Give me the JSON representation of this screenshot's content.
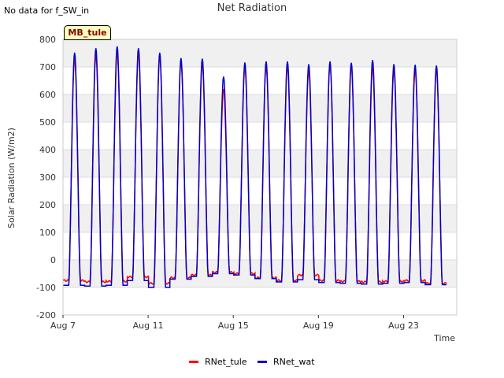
{
  "header": {
    "no_data_text": "No data for f_SW_in",
    "title": "Net Radiation"
  },
  "site_label": "MB_tule",
  "chart_data": {
    "type": "line",
    "title": "Net Radiation",
    "xlabel": "Time",
    "ylabel": "Solar Radiation (W/m2)",
    "ylim": [
      -200,
      800
    ],
    "yticks": [
      -200,
      -100,
      0,
      100,
      200,
      300,
      400,
      500,
      600,
      700,
      800
    ],
    "xlim": [
      7,
      25.5
    ],
    "xticks": [
      {
        "value": 7,
        "label": "Aug 7"
      },
      {
        "value": 11,
        "label": "Aug 11"
      },
      {
        "value": 15,
        "label": "Aug 15"
      },
      {
        "value": 19,
        "label": "Aug 19"
      },
      {
        "value": 23,
        "label": "Aug 23"
      }
    ],
    "grid": true,
    "legend_position": "bottom-center",
    "days": [
      7,
      8,
      9,
      10,
      11,
      12,
      13,
      14,
      15,
      16,
      17,
      18,
      19,
      20,
      21,
      22,
      23,
      24
    ],
    "series": [
      {
        "name": "RNet_tule",
        "color": "#ff0000",
        "peaks": [
          730,
          745,
          755,
          750,
          740,
          720,
          715,
          620,
          700,
          705,
          705,
          690,
          710,
          705,
          700,
          690,
          690,
          690
        ],
        "night": [
          -75,
          -80,
          -78,
          -62,
          -85,
          -65,
          -55,
          -45,
          -50,
          -65,
          -75,
          -55,
          -75,
          -78,
          -80,
          -78,
          -75,
          -85
        ]
      },
      {
        "name": "RNet_wat",
        "color": "#0000cc",
        "peaks": [
          752,
          768,
          775,
          768,
          752,
          732,
          730,
          665,
          716,
          720,
          720,
          710,
          720,
          715,
          725,
          710,
          708,
          705
        ],
        "night": [
          -92,
          -95,
          -92,
          -75,
          -100,
          -70,
          -60,
          -50,
          -55,
          -68,
          -80,
          -72,
          -82,
          -85,
          -88,
          -85,
          -82,
          -90
        ]
      }
    ]
  }
}
